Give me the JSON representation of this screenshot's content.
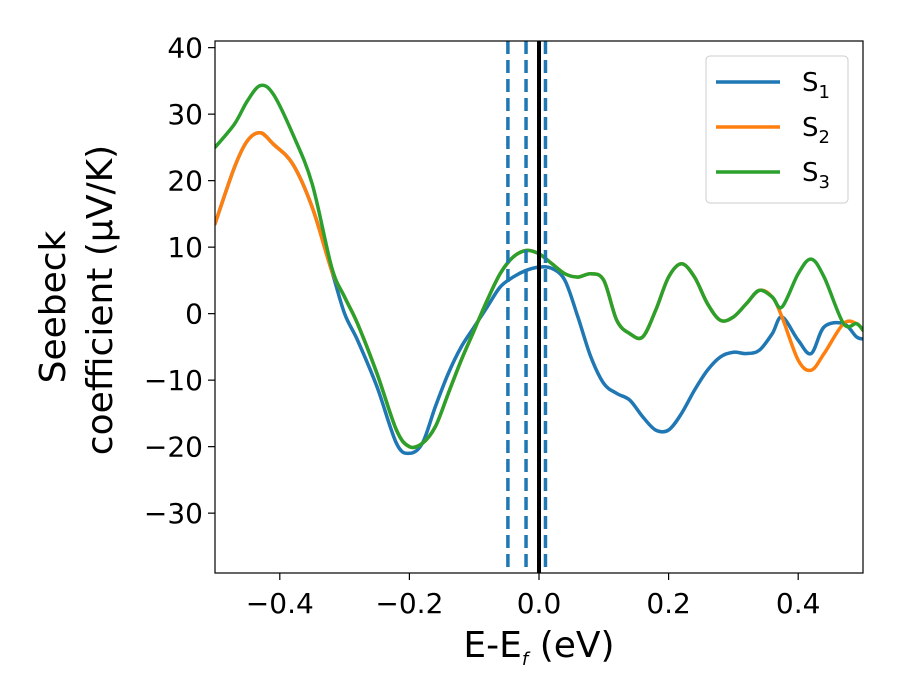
{
  "chart_data": {
    "type": "line",
    "xlabel": "E-E",
    "xlabel_sub": "f",
    "xlabel_unit": " (eV)",
    "ylabel_line1": "Seebeck",
    "ylabel_line2": "coefficient  (μV/K)",
    "xlim": [
      -0.5,
      0.5
    ],
    "ylim": [
      -39,
      41
    ],
    "xticks": [
      -0.4,
      -0.2,
      0.0,
      0.2,
      0.4
    ],
    "xtick_labels": [
      "−0.4",
      "−0.2",
      "0.0",
      "0.2",
      "0.4"
    ],
    "yticks": [
      -30,
      -20,
      -10,
      0,
      10,
      20,
      30,
      40
    ],
    "ytick_labels": [
      "−30",
      "−20",
      "−10",
      "0",
      "10",
      "20",
      "30",
      "40"
    ],
    "grid": false,
    "legend_position": "top-right",
    "vlines": [
      {
        "x": -0.048,
        "style": "dashed",
        "color": "#1f77b4"
      },
      {
        "x": -0.02,
        "style": "dashed",
        "color": "#1f77b4"
      },
      {
        "x": 0.0,
        "style": "solid",
        "color": "#000000"
      },
      {
        "x": 0.01,
        "style": "dashed",
        "color": "#1f77b4"
      }
    ],
    "series": [
      {
        "name": "S",
        "sub": "1",
        "color": "#1f77b4",
        "x": [
          -0.5,
          -0.47,
          -0.45,
          -0.43,
          -0.41,
          -0.38,
          -0.35,
          -0.32,
          -0.3,
          -0.28,
          -0.25,
          -0.22,
          -0.2,
          -0.18,
          -0.16,
          -0.14,
          -0.12,
          -0.1,
          -0.08,
          -0.06,
          -0.04,
          -0.02,
          0.0,
          0.02,
          0.04,
          0.06,
          0.08,
          0.1,
          0.12,
          0.14,
          0.16,
          0.18,
          0.2,
          0.22,
          0.24,
          0.26,
          0.28,
          0.3,
          0.32,
          0.34,
          0.36,
          0.375,
          0.4,
          0.42,
          0.44,
          0.47,
          0.49,
          0.5
        ],
        "y": [
          13.5,
          22.0,
          26.0,
          27.2,
          25.5,
          22.5,
          16.0,
          6.5,
          0.0,
          -4.0,
          -11.0,
          -19.5,
          -21.0,
          -19.5,
          -14.0,
          -9.0,
          -5.0,
          -2.0,
          1.0,
          4.0,
          5.5,
          6.5,
          7.0,
          6.8,
          5.0,
          -0.5,
          -6.5,
          -10.5,
          -12.0,
          -13.0,
          -15.5,
          -17.5,
          -17.5,
          -15.0,
          -11.5,
          -8.5,
          -6.5,
          -5.8,
          -6.0,
          -5.5,
          -3.0,
          -0.5,
          -4.0,
          -6.0,
          -2.0,
          -1.5,
          -3.5,
          -3.8
        ]
      },
      {
        "name": "S",
        "sub": "2",
        "color": "#ff7f0e",
        "x": [
          -0.5,
          -0.47,
          -0.45,
          -0.43,
          -0.41,
          -0.38,
          -0.35,
          -0.32,
          -0.3,
          -0.28,
          -0.25,
          -0.22,
          -0.2,
          -0.18,
          -0.16,
          -0.14,
          -0.12,
          -0.1,
          -0.08,
          -0.06,
          -0.04,
          -0.02,
          0.0,
          0.02,
          0.04,
          0.06,
          0.08,
          0.1,
          0.12,
          0.14,
          0.16,
          0.18,
          0.2,
          0.22,
          0.24,
          0.26,
          0.28,
          0.3,
          0.32,
          0.34,
          0.36,
          0.375,
          0.4,
          0.42,
          0.44,
          0.47,
          0.49,
          0.5
        ],
        "y": [
          13.5,
          22.0,
          26.0,
          27.2,
          25.5,
          22.5,
          16.0,
          6.5,
          2.5,
          -1.5,
          -9.0,
          -17.5,
          -20.0,
          -19.5,
          -17.0,
          -12.0,
          -7.0,
          -2.5,
          2.0,
          6.0,
          8.5,
          9.5,
          9.0,
          7.5,
          6.0,
          5.5,
          6.0,
          5.0,
          -1.0,
          -3.0,
          -3.5,
          0.5,
          5.5,
          7.5,
          5.5,
          1.5,
          -1.0,
          -0.5,
          1.5,
          3.5,
          2.5,
          -0.5,
          -7.0,
          -8.5,
          -6.0,
          -1.5,
          -1.5,
          -2.5
        ]
      },
      {
        "name": "S",
        "sub": "3",
        "color": "#2ca02c",
        "x": [
          -0.5,
          -0.47,
          -0.45,
          -0.43,
          -0.41,
          -0.38,
          -0.35,
          -0.32,
          -0.3,
          -0.28,
          -0.25,
          -0.22,
          -0.2,
          -0.18,
          -0.16,
          -0.14,
          -0.12,
          -0.1,
          -0.08,
          -0.06,
          -0.04,
          -0.02,
          0.0,
          0.02,
          0.04,
          0.06,
          0.08,
          0.1,
          0.12,
          0.14,
          0.16,
          0.18,
          0.2,
          0.22,
          0.24,
          0.26,
          0.28,
          0.3,
          0.32,
          0.34,
          0.36,
          0.375,
          0.4,
          0.42,
          0.44,
          0.47,
          0.49,
          0.5
        ],
        "y": [
          25.0,
          28.5,
          32.0,
          34.3,
          33.0,
          27.0,
          19.5,
          7.0,
          2.5,
          -1.5,
          -9.0,
          -17.5,
          -20.0,
          -19.5,
          -17.0,
          -12.0,
          -7.0,
          -2.5,
          2.0,
          6.0,
          8.5,
          9.5,
          9.0,
          7.5,
          6.0,
          5.5,
          6.0,
          5.0,
          -1.0,
          -3.0,
          -3.5,
          0.5,
          5.5,
          7.5,
          5.5,
          1.5,
          -1.0,
          -0.5,
          1.5,
          3.5,
          2.5,
          1.0,
          6.0,
          8.2,
          5.5,
          -1.5,
          -1.5,
          -2.5
        ]
      }
    ]
  }
}
